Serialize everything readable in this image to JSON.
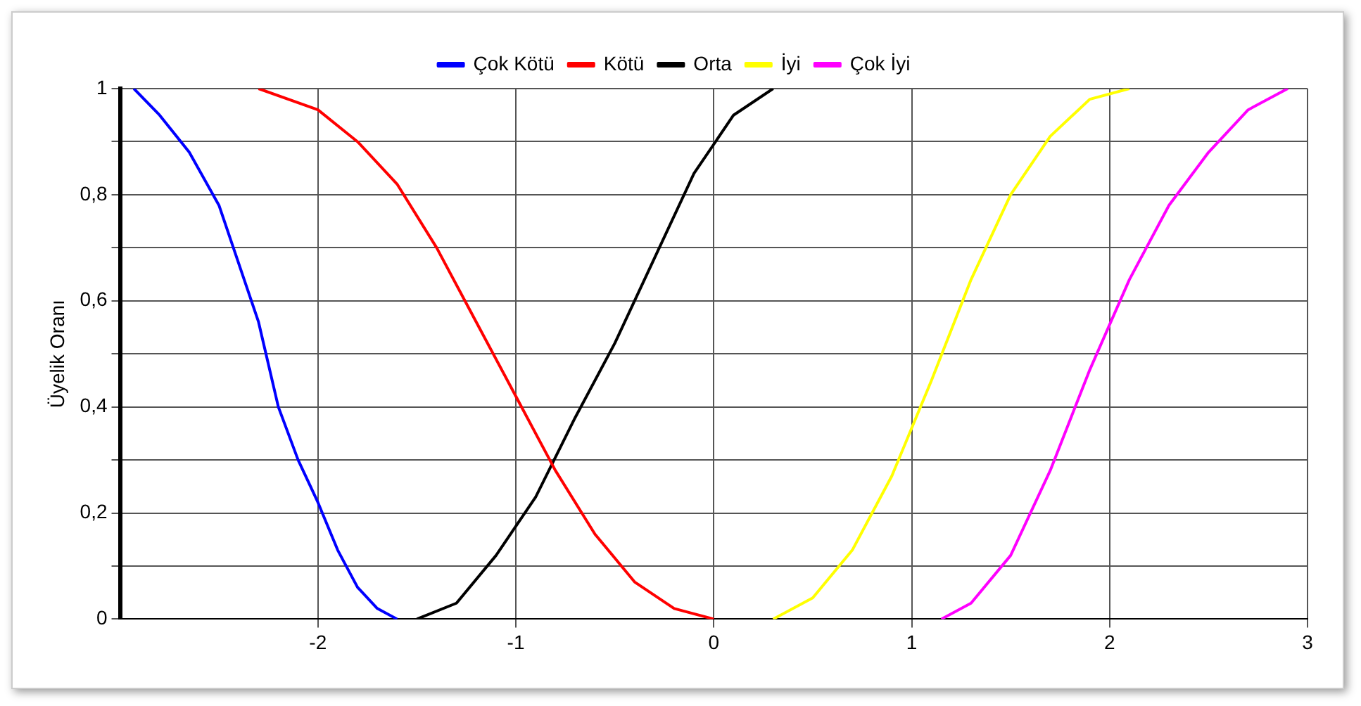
{
  "chart_data": {
    "type": "line",
    "ylabel": "Üyelik Oranı",
    "xlim": [
      -3,
      3
    ],
    "xticks": [
      -2,
      -1,
      0,
      1,
      2,
      3
    ],
    "ylim": [
      0,
      1
    ],
    "yticks": [
      0,
      {
        "value": 0.1,
        "label": null
      },
      {
        "value": 0.2,
        "label": "0,2"
      },
      {
        "value": 0.3,
        "label": null
      },
      {
        "value": 0.4,
        "label": "0,4"
      },
      {
        "value": 0.5,
        "label": null
      },
      {
        "value": 0.6,
        "label": "0,6"
      },
      {
        "value": 0.7,
        "label": null
      },
      {
        "value": 0.8,
        "label": "0,8"
      },
      {
        "value": 0.9,
        "label": null
      },
      1
    ],
    "grid": true,
    "legend": "top",
    "marker": "none",
    "line_style": "solid",
    "series": [
      {
        "name": "Çok Kötü",
        "color": "#0000ff",
        "x": [
          -2.93,
          -2.8,
          -2.65,
          -2.5,
          -2.4,
          -2.3,
          -2.2,
          -2.1,
          -2.0,
          -1.9,
          -1.8,
          -1.7,
          -1.6
        ],
        "values": [
          1,
          0.95,
          0.88,
          0.78,
          0.67,
          0.56,
          0.4,
          0.3,
          0.22,
          0.13,
          0.06,
          0.02,
          0
        ]
      },
      {
        "name": "Kötü",
        "color": "#ff0000",
        "x": [
          -2.3,
          -2.0,
          -1.8,
          -1.6,
          -1.4,
          -1.2,
          -1.0,
          -0.8,
          -0.6,
          -0.4,
          -0.2,
          0
        ],
        "values": [
          1,
          0.96,
          0.9,
          0.82,
          0.7,
          0.56,
          0.42,
          0.28,
          0.16,
          0.07,
          0.02,
          0
        ]
      },
      {
        "name": "Orta",
        "color": "#000000",
        "x": [
          -1.5,
          -1.3,
          -1.1,
          -0.9,
          -0.7,
          -0.5,
          -0.3,
          -0.1,
          0.1,
          0.3
        ],
        "values": [
          0,
          0.03,
          0.12,
          0.23,
          0.38,
          0.52,
          0.68,
          0.84,
          0.95,
          1
        ]
      },
      {
        "name": "İyi",
        "color": "#ffff00",
        "x": [
          0.3,
          0.5,
          0.7,
          0.9,
          1.1,
          1.3,
          1.5,
          1.7,
          1.9,
          2.1
        ],
        "values": [
          0,
          0.04,
          0.13,
          0.27,
          0.45,
          0.64,
          0.8,
          0.91,
          0.98,
          1
        ]
      },
      {
        "name": "Çok İyi",
        "color": "#ff00ff",
        "x": [
          1.15,
          1.3,
          1.5,
          1.7,
          1.9,
          2.1,
          2.3,
          2.5,
          2.7,
          2.9
        ],
        "values": [
          0,
          0.03,
          0.12,
          0.28,
          0.47,
          0.64,
          0.78,
          0.88,
          0.96,
          1
        ]
      }
    ]
  }
}
